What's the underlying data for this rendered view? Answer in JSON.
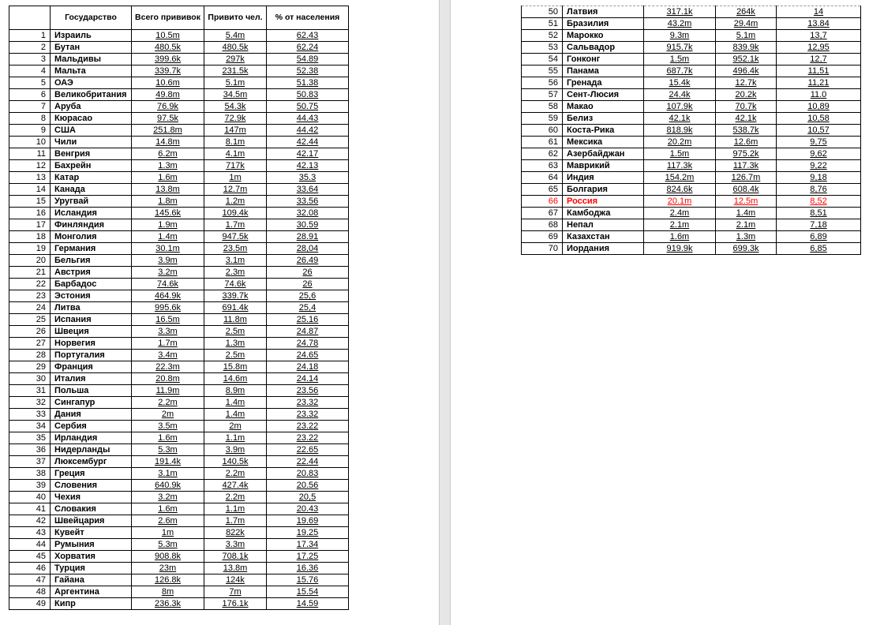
{
  "header": {
    "country": "Государство",
    "total": "Всего прививок",
    "vaccinated": "Привито чел.",
    "percent": "% от населения"
  },
  "highlight": {
    "row": "66",
    "color": "#ff0000"
  },
  "rows": [
    [
      "1",
      "Израиль",
      "10.5m",
      "5.4m",
      "62.43"
    ],
    [
      "2",
      "Бутан",
      "480.5k",
      "480.5k",
      "62.24"
    ],
    [
      "3",
      "Мальдивы",
      "399.6k",
      "297k",
      "54.89"
    ],
    [
      "4",
      "Мальта",
      "339.7k",
      "231.5k",
      "52.38"
    ],
    [
      "5",
      "ОАЭ",
      "10.6m",
      "5.1m",
      "51.38"
    ],
    [
      "6",
      "Великобритания",
      "49.8m",
      "34.5m",
      "50.83"
    ],
    [
      "7",
      "Аруба",
      "76.9k",
      "54.3k",
      "50.75"
    ],
    [
      "8",
      "Кюрасао",
      "97.5k",
      "72.9k",
      "44.43"
    ],
    [
      "9",
      "США",
      "251.8m",
      "147m",
      "44.42"
    ],
    [
      "10",
      "Чили",
      "14.8m",
      "8.1m",
      "42.44"
    ],
    [
      "11",
      "Венгрия",
      "6.2m",
      "4.1m",
      "42.17"
    ],
    [
      "12",
      "Бахрейн",
      "1.3m",
      "717k",
      "42.13"
    ],
    [
      "13",
      "Катар",
      "1.6m",
      "1m",
      "35.3"
    ],
    [
      "14",
      "Канада",
      "13.8m",
      "12.7m",
      "33.64"
    ],
    [
      "15",
      "Уругвай",
      "1.8m",
      "1.2m",
      "33.56"
    ],
    [
      "16",
      "Исландия",
      "145.6k",
      "109.4k",
      "32.08"
    ],
    [
      "17",
      "Финляндия",
      "1.9m",
      "1.7m",
      "30.59"
    ],
    [
      "18",
      "Монголия",
      "1.4m",
      "947.5k",
      "28.91"
    ],
    [
      "19",
      "Германия",
      "30.1m",
      "23.5m",
      "28,04"
    ],
    [
      "20",
      "Бельгия",
      "3.9m",
      "3.1m",
      "26.49"
    ],
    [
      "21",
      "Австрия",
      "3.2m",
      "2.3m",
      "26"
    ],
    [
      "22",
      "Барбадос",
      "74.6k",
      "74.6k",
      "26"
    ],
    [
      "23",
      "Эстония",
      "464.9k",
      "339.7k",
      "25,6"
    ],
    [
      "24",
      "Литва",
      "995.6k",
      "691.4k",
      "25,4"
    ],
    [
      "25",
      "Испания",
      "16.5m",
      "11.8m",
      "25.16"
    ],
    [
      "26",
      "Швеция",
      "3.3m",
      "2.5m",
      "24.87"
    ],
    [
      "27",
      "Норвегия",
      "1.7m",
      "1.3m",
      "24.78"
    ],
    [
      "28",
      "Португалия",
      "3.4m",
      "2.5m",
      "24.65"
    ],
    [
      "29",
      "Франция",
      "22.3m",
      "15.8m",
      "24.18"
    ],
    [
      "30",
      "Италия",
      "20.8m",
      "14.6m",
      "24.14"
    ],
    [
      "31",
      "Польша",
      "11.9m",
      "8.9m",
      "23.56"
    ],
    [
      "32",
      "Сингапур",
      "2.2m",
      "1.4m",
      "23.32"
    ],
    [
      "33",
      "Дания",
      "2m",
      "1.4m",
      "23.32"
    ],
    [
      "34",
      "Сербия",
      "3.5m",
      "2m",
      "23.22"
    ],
    [
      "35",
      "Ирландия",
      "1.6m",
      "1.1m",
      "23.22"
    ],
    [
      "36",
      "Нидерланды",
      "5.3m",
      "3.9m",
      "22.65"
    ],
    [
      "37",
      "Люксембург",
      "191.4k",
      "140.5k",
      "22.44"
    ],
    [
      "38",
      "Греция",
      "3.1m",
      "2.2m",
      "20.83"
    ],
    [
      "39",
      "Словения",
      "640.9k",
      "427.4k",
      "20.56"
    ],
    [
      "40",
      "Чехия",
      "3.2m",
      "2.2m",
      "20,5"
    ],
    [
      "41",
      "Словакия",
      "1.6m",
      "1.1m",
      "20.43"
    ],
    [
      "42",
      "Швейцария",
      "2.6m",
      "1.7m",
      "19.69"
    ],
    [
      "43",
      "Кувейт",
      "1m",
      "822k",
      "19.25"
    ],
    [
      "44",
      "Румыния",
      "5.3m",
      "3.3m",
      "17.34"
    ],
    [
      "45",
      "Хорватия",
      "908.8k",
      "708.1k",
      "17.25"
    ],
    [
      "46",
      "Турция",
      "23m",
      "13.8m",
      "16.36"
    ],
    [
      "47",
      "Гайана",
      "126.8k",
      "124k",
      "15.76"
    ],
    [
      "48",
      "Аргентина",
      "8m",
      "7m",
      "15.54"
    ],
    [
      "49",
      "Кипр",
      "236.3k",
      "176.1k",
      "14.59"
    ],
    [
      "50",
      "Латвия",
      "317.1k",
      "264k",
      "14"
    ],
    [
      "51",
      "Бразилия",
      "43.2m",
      "29.4m",
      "13.84"
    ],
    [
      "52",
      "Марокко",
      "9.3m",
      "5.1m",
      "13,7"
    ],
    [
      "53",
      "Сальвадор",
      "915.7k",
      "839.9k",
      "12,95"
    ],
    [
      "54",
      "Гонконг",
      "1.5m",
      "952.1k",
      "12,7"
    ],
    [
      "55",
      "Панама",
      "687.7k",
      "496.4k",
      "11,51"
    ],
    [
      "56",
      "Гренада",
      "15.4k",
      "12.7k",
      "11,21"
    ],
    [
      "57",
      "Сент-Люсия",
      "24.4k",
      "20.2k",
      "11.0"
    ],
    [
      "58",
      "Макао",
      "107.9k",
      "70.7k",
      "10,89"
    ],
    [
      "59",
      "Белиз",
      "42.1k",
      "42.1k",
      "10,58"
    ],
    [
      "60",
      "Коста-Рика",
      "818.9k",
      "538.7k",
      "10,57"
    ],
    [
      "61",
      "Мексика",
      "20.2m",
      "12.6m",
      "9,75"
    ],
    [
      "62",
      "Азербайджан",
      "1.5m",
      "975.2k",
      "9,62"
    ],
    [
      "63",
      "Маврикий",
      "117.3k",
      "117.3k",
      "9,22"
    ],
    [
      "64",
      "Индия",
      "154.2m",
      "126.7m",
      "9,18"
    ],
    [
      "65",
      "Болгария",
      "824.6k",
      "608.4k",
      "8,76"
    ],
    [
      "66",
      "Россия",
      "20.1m",
      "12.5m",
      "8,52"
    ],
    [
      "67",
      "Камбоджа",
      "2.4m",
      "1.4m",
      "8,51"
    ],
    [
      "68",
      "Непал",
      "2.1m",
      "2.1m",
      "7,18"
    ],
    [
      "69",
      "Казахстан",
      "1.6m",
      "1.3m",
      "6,89"
    ],
    [
      "70",
      "Иордания",
      "919.9k",
      "699.3k",
      "6,85"
    ]
  ]
}
